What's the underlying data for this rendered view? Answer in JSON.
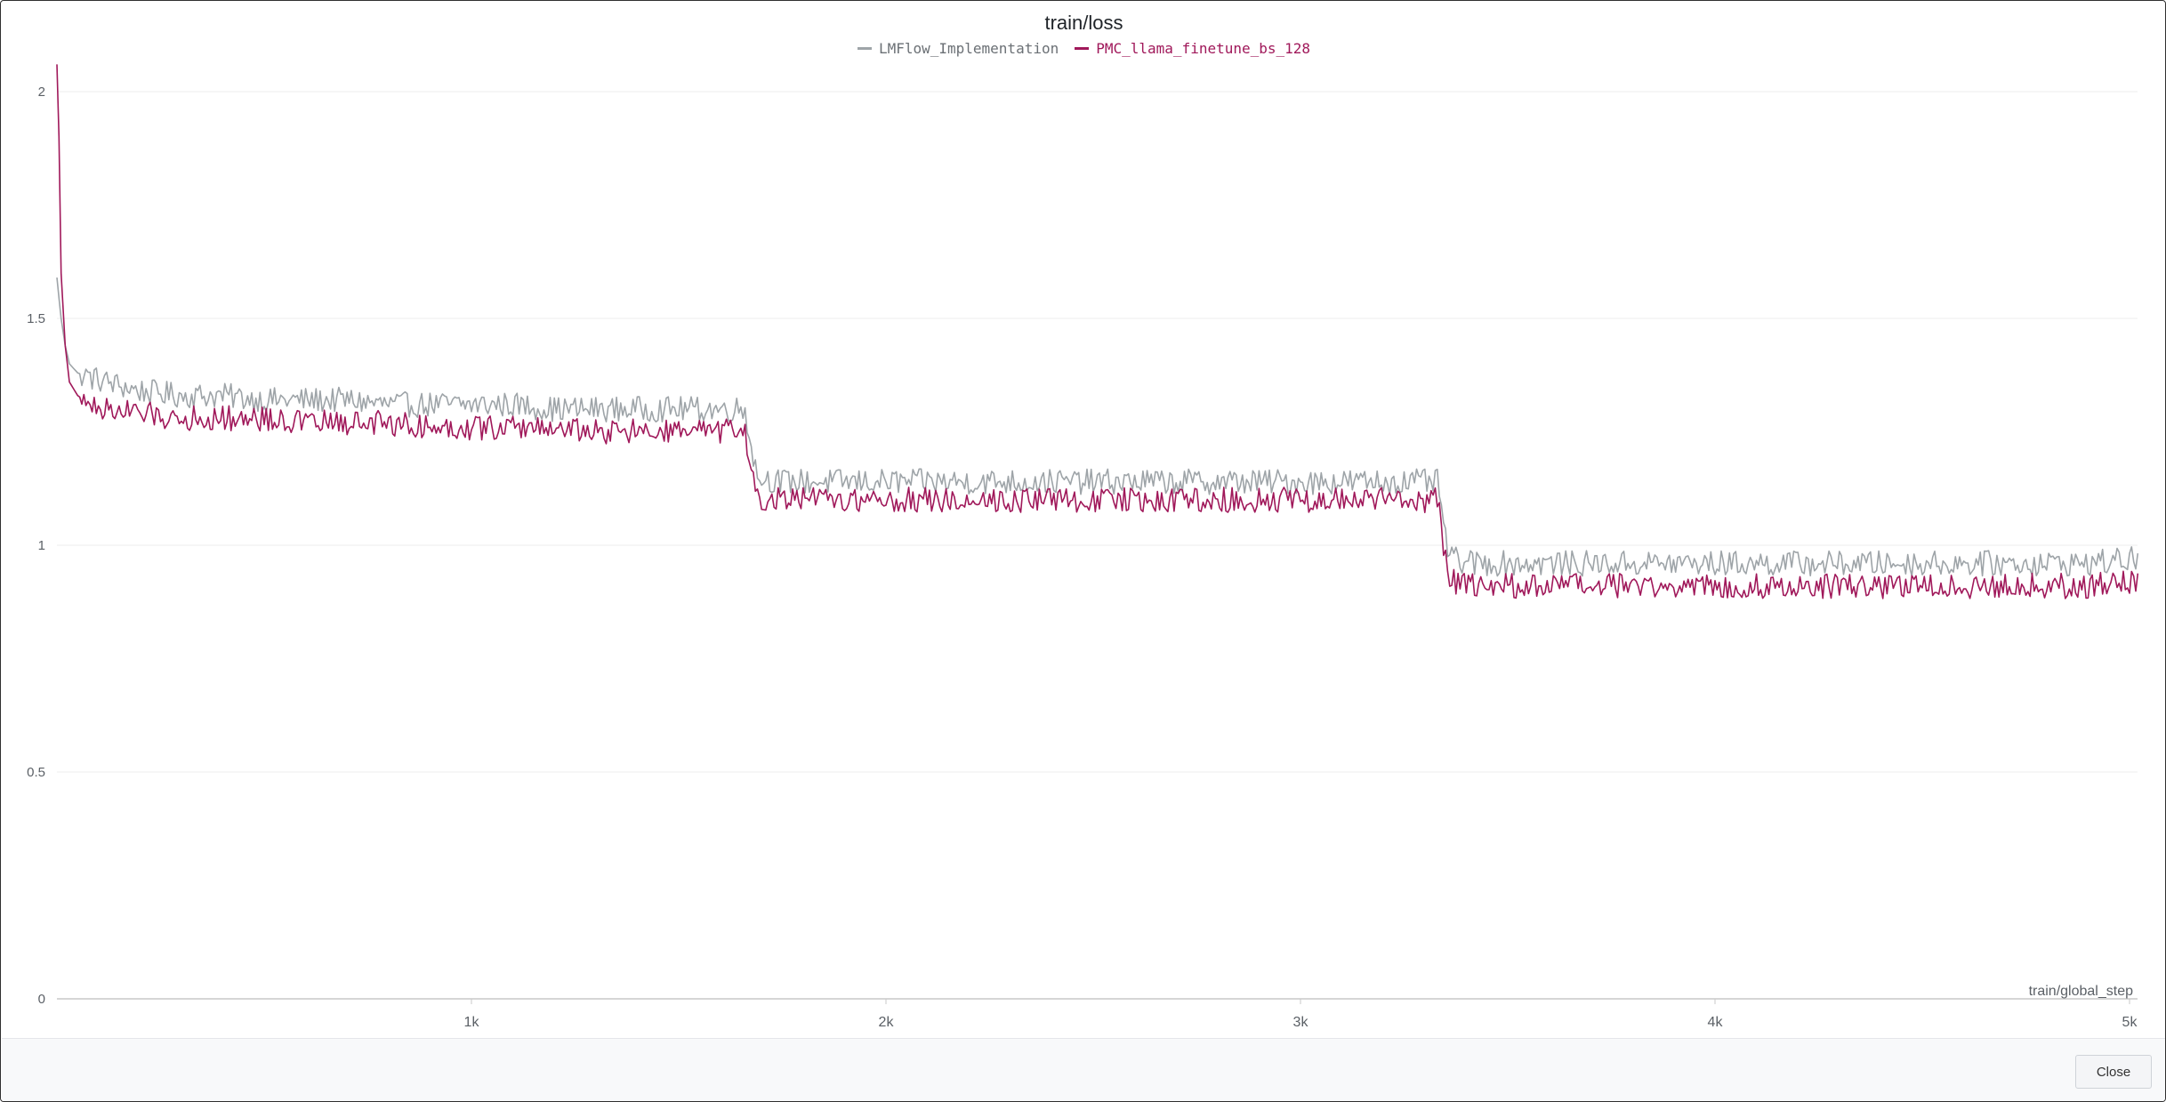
{
  "footer": {
    "close_label": "Close"
  },
  "colors": {
    "series_gray": "#9ea4a8",
    "series_magenta": "#a0185a",
    "grid": "#eeeeee",
    "axis": "#c8c8c8",
    "tick_text": "#5b6066"
  },
  "chart_data": {
    "type": "line",
    "title": "train/loss",
    "xlabel": "train/global_step",
    "ylabel": "",
    "xlim": [
      0,
      5000
    ],
    "ylim": [
      0,
      2.05
    ],
    "grid": true,
    "legend_position": "top-center",
    "x_ticks": [
      {
        "value": 1000,
        "label": "1k"
      },
      {
        "value": 2000,
        "label": "2k"
      },
      {
        "value": 3000,
        "label": "3k"
      },
      {
        "value": 4000,
        "label": "4k"
      },
      {
        "value": 5000,
        "label": "5k"
      }
    ],
    "y_ticks": [
      {
        "value": 0,
        "label": "0"
      },
      {
        "value": 0.5,
        "label": "0.5"
      },
      {
        "value": 1,
        "label": "1"
      },
      {
        "value": 1.5,
        "label": "1.5"
      },
      {
        "value": 2,
        "label": "2"
      }
    ],
    "series": [
      {
        "name": "LMFlow_Implementation",
        "color": "#9ea4a8",
        "x": [
          0,
          10,
          20,
          30,
          50,
          80,
          120,
          200,
          300,
          400,
          500,
          600,
          700,
          800,
          900,
          1000,
          1100,
          1200,
          1300,
          1400,
          1500,
          1600,
          1660,
          1675,
          1690,
          1750,
          1850,
          2000,
          2200,
          2400,
          2600,
          2800,
          3000,
          3200,
          3330,
          3345,
          3360,
          3420,
          3500,
          3700,
          3900,
          4100,
          4300,
          4500,
          4700,
          4900,
          5020
        ],
        "y": [
          1.59,
          1.5,
          1.44,
          1.4,
          1.38,
          1.37,
          1.36,
          1.34,
          1.33,
          1.33,
          1.32,
          1.32,
          1.32,
          1.31,
          1.31,
          1.31,
          1.31,
          1.3,
          1.3,
          1.3,
          1.3,
          1.3,
          1.3,
          1.22,
          1.15,
          1.14,
          1.14,
          1.14,
          1.14,
          1.14,
          1.14,
          1.14,
          1.14,
          1.14,
          1.14,
          1.05,
          0.97,
          0.96,
          0.96,
          0.96,
          0.96,
          0.96,
          0.96,
          0.96,
          0.96,
          0.96,
          0.97
        ]
      },
      {
        "name": "PMC_llama_finetune_bs_128",
        "color": "#a0185a",
        "x": [
          0,
          5,
          10,
          20,
          30,
          50,
          80,
          120,
          200,
          300,
          400,
          500,
          600,
          700,
          800,
          900,
          1000,
          1100,
          1200,
          1300,
          1400,
          1500,
          1600,
          1660,
          1675,
          1690,
          1750,
          1850,
          2000,
          2200,
          2400,
          2600,
          2800,
          3000,
          3200,
          3330,
          3345,
          3360,
          3420,
          3500,
          3700,
          3900,
          4100,
          4300,
          4500,
          4700,
          4900,
          5020
        ],
        "y": [
          2.06,
          1.9,
          1.6,
          1.44,
          1.36,
          1.33,
          1.31,
          1.3,
          1.29,
          1.28,
          1.28,
          1.28,
          1.27,
          1.27,
          1.27,
          1.26,
          1.26,
          1.26,
          1.26,
          1.25,
          1.25,
          1.25,
          1.25,
          1.25,
          1.16,
          1.1,
          1.1,
          1.1,
          1.1,
          1.1,
          1.1,
          1.1,
          1.1,
          1.1,
          1.1,
          1.1,
          1.0,
          0.92,
          0.91,
          0.91,
          0.91,
          0.91,
          0.91,
          0.91,
          0.91,
          0.91,
          0.91,
          0.92
        ]
      }
    ]
  }
}
